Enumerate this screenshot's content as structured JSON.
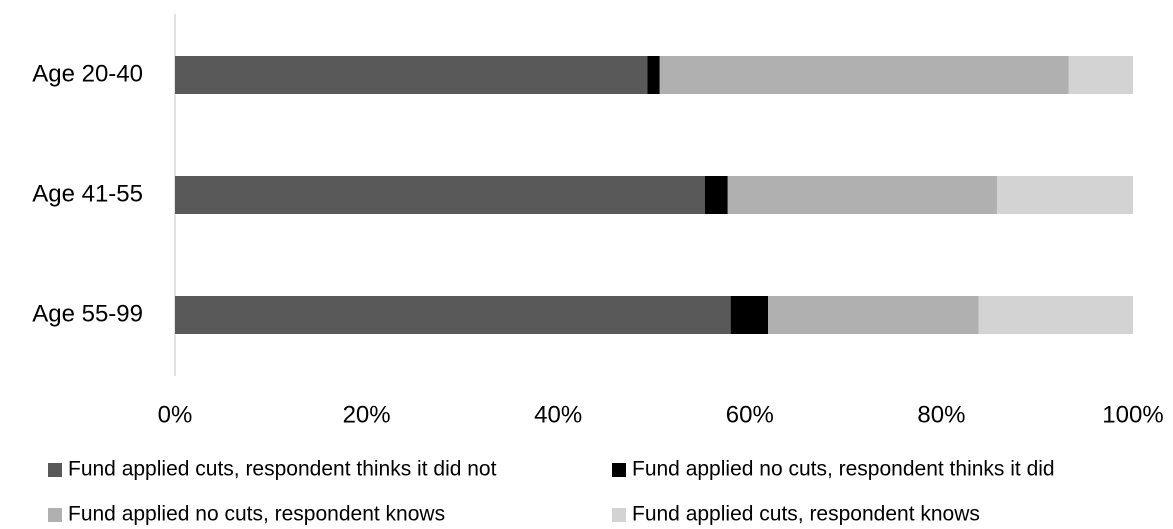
{
  "chart_data": {
    "type": "stacked-bar-horizontal",
    "categories": [
      "Age 20-40",
      "Age 41-55",
      "Age 55-99"
    ],
    "series": [
      {
        "name": "Fund applied cuts, respondent thinks it did not",
        "color": "#595959",
        "values": [
          49.3,
          55.3,
          58.0
        ]
      },
      {
        "name": "Fund applied no cuts, respondent thinks it did",
        "color": "#000000",
        "values": [
          1.3,
          2.4,
          3.9
        ]
      },
      {
        "name": "Fund applied no cuts, respondent knows",
        "color": "#b0b0b0",
        "values": [
          42.7,
          28.1,
          22.0
        ]
      },
      {
        "name": "Fund applied cuts, respondent knows",
        "color": "#d3d3d3",
        "values": [
          6.7,
          14.2,
          16.1
        ]
      }
    ],
    "xlim": [
      0,
      100
    ],
    "xticks": [
      {
        "value": 0,
        "label": "0%"
      },
      {
        "value": 20,
        "label": "20%"
      },
      {
        "value": 40,
        "label": "40%"
      },
      {
        "value": 60,
        "label": "60%"
      },
      {
        "value": 80,
        "label": "80%"
      },
      {
        "value": 100,
        "label": "100%"
      }
    ],
    "grid": false,
    "legend": "bottom"
  }
}
